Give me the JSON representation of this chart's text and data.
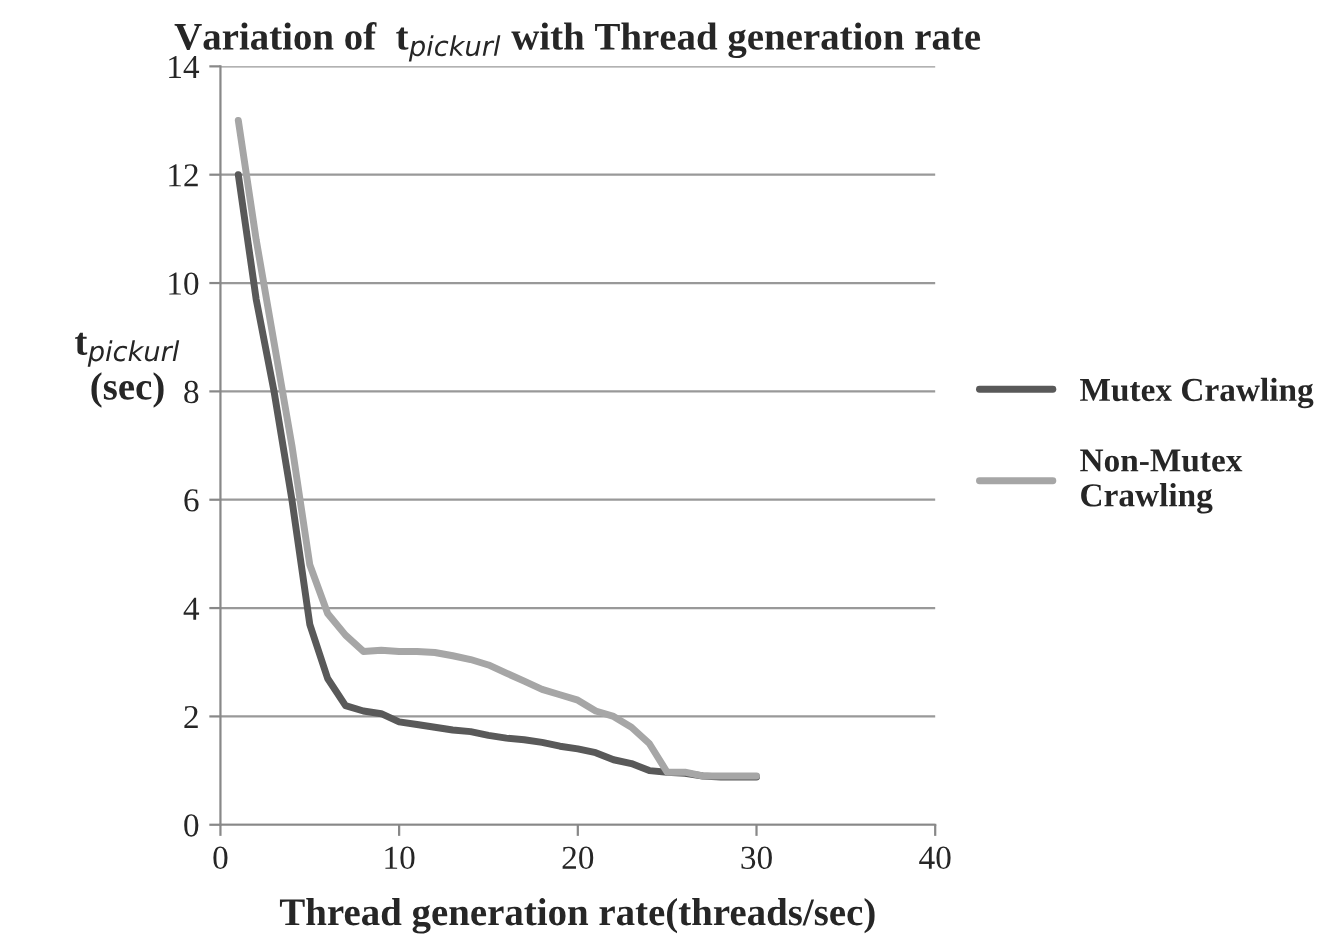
{
  "chart_data": {
    "type": "line",
    "title": "Variation of  t$_{pickurl}$ with Thread generation rate",
    "xlabel": "Thread generation rate(threads/sec)",
    "ylabel": "t$_{pickurl}$\n(sec)",
    "x": [
      1,
      2,
      3,
      4,
      5,
      6,
      7,
      8,
      9,
      10,
      11,
      12,
      13,
      14,
      15,
      16,
      17,
      18,
      19,
      20,
      21,
      22,
      23,
      24,
      25,
      26,
      27,
      28,
      29,
      30
    ],
    "series": [
      {
        "name": "Mutex Crawling",
        "color": "#595959",
        "values": [
          12,
          9.7,
          8,
          6,
          3.7,
          2.7,
          2.2,
          2.1,
          2.05,
          1.9,
          1.85,
          1.8,
          1.75,
          1.72,
          1.65,
          1.6,
          1.57,
          1.52,
          1.45,
          1.4,
          1.33,
          1.2,
          1.13,
          1.0,
          0.97,
          0.95,
          0.9,
          0.88,
          0.88,
          0.88
        ]
      },
      {
        "name": "Non-Mutex\nCrawling",
        "color": "#a6a6a6",
        "values": [
          13,
          10.8,
          8.9,
          7,
          4.8,
          3.9,
          3.5,
          3.2,
          3.22,
          3.2,
          3.2,
          3.18,
          3.12,
          3.05,
          2.95,
          2.8,
          2.65,
          2.5,
          2.4,
          2.3,
          2.1,
          2.0,
          1.8,
          1.5,
          0.97,
          0.97,
          0.9,
          0.9,
          0.9,
          0.9
        ]
      }
    ],
    "xlim": [
      0,
      40
    ],
    "xticks": [
      0,
      10,
      20,
      30,
      40
    ],
    "ylim": [
      0,
      14
    ],
    "yticks": [
      0,
      2,
      4,
      6,
      8,
      10,
      12,
      14
    ],
    "grid": "y",
    "legend": "right",
    "marker": "none",
    "line_style": "solid"
  }
}
